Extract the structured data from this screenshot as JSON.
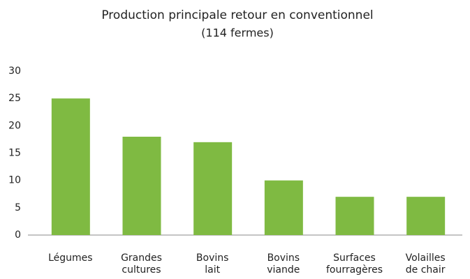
{
  "chart_data": {
    "type": "bar",
    "title": "Production principale retour en conventionnel",
    "subtitle": "(114 fermes)",
    "categories": [
      [
        "Légumes"
      ],
      [
        "Grandes",
        "cultures"
      ],
      [
        "Bovins",
        "lait"
      ],
      [
        "Bovins",
        "viande"
      ],
      [
        "Surfaces",
        "fourragères"
      ],
      [
        "Volailles",
        "de chair"
      ]
    ],
    "values": [
      25,
      18,
      17,
      10,
      7,
      7
    ],
    "color": "#7fba42",
    "ylim": [
      0,
      30
    ],
    "yticks": [
      0,
      5,
      10,
      15,
      20,
      25,
      30
    ],
    "grid": false
  }
}
